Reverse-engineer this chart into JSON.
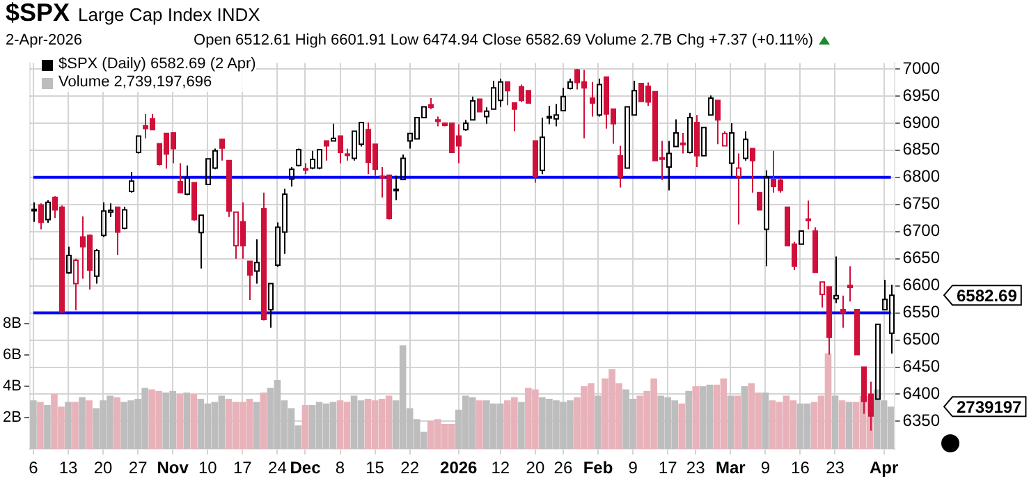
{
  "chart_data": {
    "type": "candlestick",
    "title": "$SPX",
    "subtitle": "Large Cap Index  INDX",
    "annotations": [
      "2-Apr-2026",
      "Open 6512.61  High 6601.91  Low 6474.94  Close 6582.69  Volume 2.7B  Chg +7.37 (+0.11%)",
      "6582.69",
      "2739197"
    ],
    "categories": [
      "6",
      null,
      null,
      null,
      null,
      "13",
      null,
      null,
      null,
      null,
      "20",
      null,
      null,
      null,
      null,
      "27",
      null,
      null,
      null,
      null,
      "Nov",
      null,
      null,
      null,
      null,
      "10",
      null,
      null,
      null,
      null,
      "17",
      null,
      null,
      null,
      null,
      "24",
      null,
      null,
      null,
      "Dec",
      null,
      null,
      null,
      null,
      "8",
      null,
      null,
      null,
      null,
      "15",
      null,
      null,
      null,
      null,
      "22",
      null,
      null,
      null,
      null,
      null,
      null,
      "2026",
      null,
      null,
      null,
      null,
      null,
      "12",
      null,
      null,
      null,
      null,
      "20",
      null,
      null,
      null,
      "26",
      null,
      null,
      null,
      null,
      "Feb",
      null,
      null,
      null,
      null,
      "9",
      null,
      null,
      null,
      null,
      "17",
      null,
      null,
      null,
      "23",
      null,
      null,
      null,
      null,
      "Mar",
      null,
      null,
      null,
      null,
      "9",
      null,
      null,
      null,
      null,
      "16",
      null,
      null,
      null,
      null,
      "23",
      null,
      null,
      null,
      null,
      null,
      null,
      "Apr",
      null
    ],
    "series": [
      {
        "name": "$SPX (Daily) 6582.69 (2 Apr)",
        "type": "candlestick",
        "color": "#000000",
        "ohlc": [
          [
            6741,
            6754,
            6718,
            6740
          ],
          [
            6749,
            6752,
            6704,
            6717
          ],
          [
            6722,
            6758,
            6716,
            6754
          ],
          [
            6763,
            6765,
            6725,
            6740
          ],
          [
            6745,
            6748,
            6550,
            6552
          ],
          [
            6624,
            6672,
            6622,
            6656
          ],
          [
            6604,
            6650,
            6555,
            6647
          ],
          [
            6690,
            6728,
            6613,
            6672
          ],
          [
            6693,
            6695,
            6593,
            6629
          ],
          [
            6618,
            6668,
            6604,
            6665
          ],
          [
            6693,
            6754,
            6690,
            6738
          ],
          [
            6736,
            6752,
            6727,
            6739
          ],
          [
            6745,
            6746,
            6657,
            6699
          ],
          [
            6706,
            6746,
            6704,
            6740
          ],
          [
            6774,
            6810,
            6772,
            6793
          ],
          [
            6846,
            6876,
            6844,
            6876
          ],
          [
            6895,
            6917,
            6872,
            6890
          ],
          [
            6908,
            6917,
            6888,
            6888
          ],
          [
            6862,
            6862,
            6822,
            6824
          ],
          [
            6881,
            6881,
            6816,
            6843
          ],
          [
            6882,
            6882,
            6826,
            6853
          ],
          [
            6792,
            6826,
            6772,
            6772
          ],
          [
            6769,
            6822,
            6767,
            6799
          ],
          [
            6790,
            6790,
            6720,
            6722
          ],
          [
            6698,
            6730,
            6632,
            6730
          ],
          [
            6787,
            6834,
            6786,
            6834
          ],
          [
            6817,
            6853,
            6815,
            6849
          ],
          [
            6870,
            6870,
            6831,
            6854
          ],
          [
            6831,
            6831,
            6727,
            6738
          ],
          [
            6674,
            6736,
            6650,
            6736
          ],
          [
            6718,
            6754,
            6650,
            6674
          ],
          [
            6645,
            6645,
            6574,
            6620
          ],
          [
            6627,
            6686,
            6604,
            6643
          ],
          [
            6742,
            6772,
            6536,
            6538
          ],
          [
            6556,
            6604,
            6523,
            6604
          ],
          [
            6638,
            6717,
            6635,
            6708
          ],
          [
            6699,
            6779,
            6659,
            6769
          ],
          [
            6797,
            6819,
            6783,
            6815
          ],
          [
            6822,
            6853,
            6820,
            6851
          ],
          [
            6816,
            6826,
            6806,
            6815
          ],
          [
            6817,
            6849,
            6815,
            6833
          ],
          [
            6817,
            6851,
            6815,
            6851
          ],
          [
            6867,
            6867,
            6831,
            6858
          ],
          [
            6867,
            6899,
            6867,
            6872
          ],
          [
            6876,
            6876,
            6826,
            6846
          ],
          [
            6843,
            6853,
            6831,
            6842
          ],
          [
            6835,
            6885,
            6831,
            6885
          ],
          [
            6861,
            6901,
            6857,
            6901
          ],
          [
            6888,
            6901,
            6806,
            6828
          ],
          [
            6861,
            6861,
            6803,
            6815
          ],
          [
            6802,
            6819,
            6763,
            6801
          ],
          [
            6804,
            6804,
            6722,
            6724
          ],
          [
            6777,
            6803,
            6758,
            6778
          ],
          [
            6796,
            6842,
            6796,
            6835
          ],
          [
            6867,
            6881,
            6853,
            6881
          ],
          [
            6871,
            6910,
            6871,
            6910
          ],
          [
            6910,
            6930,
            6910,
            6930
          ],
          [
            6934,
            6946,
            6926,
            6929
          ],
          [
            6906,
            6912,
            6894,
            6905
          ],
          [
            6900,
            6900,
            6894,
            6896
          ],
          [
            6900,
            6900,
            6846,
            6846
          ],
          [
            6876,
            6898,
            6826,
            6858
          ],
          [
            6888,
            6906,
            6886,
            6900
          ],
          [
            6906,
            6949,
            6906,
            6941
          ],
          [
            6944,
            6944,
            6921,
            6921
          ],
          [
            6912,
            6929,
            6899,
            6922
          ],
          [
            6926,
            6978,
            6926,
            6965
          ],
          [
            6942,
            6982,
            6930,
            6976
          ],
          [
            6976,
            6976,
            6933,
            6960
          ],
          [
            6937,
            6937,
            6885,
            6926
          ],
          [
            6967,
            6971,
            6939,
            6942
          ],
          [
            6960,
            6960,
            6937,
            6937
          ],
          [
            6867,
            6867,
            6790,
            6802
          ],
          [
            6813,
            6910,
            6806,
            6874
          ],
          [
            6911,
            6932,
            6898,
            6912
          ],
          [
            6908,
            6935,
            6894,
            6915
          ],
          [
            6923,
            6965,
            6922,
            6949
          ],
          [
            6964,
            6982,
            6962,
            6976
          ],
          [
            6998,
            7000,
            6962,
            6975
          ],
          [
            6976,
            6998,
            6872,
            6965
          ],
          [
            6946,
            6976,
            6912,
            6937
          ],
          [
            6915,
            6982,
            6912,
            6971
          ],
          [
            6985,
            6985,
            6890,
            6917
          ],
          [
            6926,
            6926,
            6862,
            6899
          ],
          [
            6840,
            6858,
            6781,
            6802
          ],
          [
            6817,
            6930,
            6817,
            6930
          ],
          [
            6915,
            6978,
            6915,
            6960
          ],
          [
            6973,
            6973,
            6940,
            6940
          ],
          [
            6968,
            6975,
            6932,
            6939
          ],
          [
            6958,
            6958,
            6831,
            6831
          ],
          [
            6836,
            6867,
            6795,
            6835
          ],
          [
            6819,
            6867,
            6776,
            6844
          ],
          [
            6857,
            6907,
            6857,
            6882
          ],
          [
            6863,
            6882,
            6844,
            6862
          ],
          [
            6846,
            6919,
            6844,
            6910
          ],
          [
            6901,
            6915,
            6819,
            6840
          ],
          [
            6840,
            6892,
            6840,
            6892
          ],
          [
            6915,
            6951,
            6915,
            6946
          ],
          [
            6942,
            6942,
            6861,
            6906
          ],
          [
            6858,
            6885,
            6858,
            6881
          ],
          [
            6826,
            6900,
            6801,
            6882
          ],
          [
            6801,
            6844,
            6713,
            6817
          ],
          [
            6835,
            6885,
            6831,
            6870
          ],
          [
            6853,
            6853,
            6772,
            6831
          ],
          [
            6772,
            6772,
            6740,
            6740
          ],
          [
            6704,
            6813,
            6636,
            6801
          ],
          [
            6796,
            6849,
            6772,
            6783
          ],
          [
            6795,
            6799,
            6772,
            6776
          ],
          [
            6745,
            6745,
            6674,
            6674
          ],
          [
            6677,
            6681,
            6629,
            6636
          ],
          [
            6677,
            6701,
            6677,
            6701
          ],
          [
            6723,
            6757,
            6704,
            6722
          ],
          [
            6701,
            6708,
            6625,
            6625
          ],
          [
            6584,
            6607,
            6560,
            6607
          ],
          [
            6598,
            6598,
            6473,
            6505
          ],
          [
            6576,
            6654,
            6568,
            6582
          ],
          [
            6556,
            6582,
            6523,
            6550
          ],
          [
            6601,
            6636,
            6571,
            6597
          ],
          [
            6556,
            6556,
            6473,
            6473
          ],
          [
            6450,
            6450,
            6364,
            6387
          ],
          [
            6400,
            6423,
            6333,
            6360
          ],
          [
            6391,
            6529,
            6391,
            6529
          ],
          [
            6556,
            6611,
            6556,
            6575
          ],
          [
            6512.61,
            6601.91,
            6474.94,
            6582.69
          ]
        ],
        "colors": [
          "#000000",
          "#d0103a",
          "#000000",
          "#d0103a",
          "#d0103a",
          "#000000",
          "#d0103a",
          "#d0103a",
          "#d0103a",
          "#000000",
          "#000000",
          "#000000",
          "#d0103a",
          "#000000",
          "#000000",
          "#000000",
          "#d0103a",
          "#d0103a",
          "#d0103a",
          "#d0103a",
          "#d0103a",
          "#d0103a",
          "#000000",
          "#d0103a",
          "#000000",
          "#000000",
          "#000000",
          "#d0103a",
          "#d0103a",
          "#d0103a",
          "#d0103a",
          "#d0103a",
          "#000000",
          "#d0103a",
          "#000000",
          "#000000",
          "#000000",
          "#000000",
          "#000000",
          "#d0103a",
          "#000000",
          "#000000",
          "#d0103a",
          "#000000",
          "#d0103a",
          "#d0103a",
          "#000000",
          "#000000",
          "#d0103a",
          "#d0103a",
          "#d0103a",
          "#d0103a",
          "#000000",
          "#000000",
          "#000000",
          "#000000",
          "#000000",
          "#d0103a",
          "#d0103a",
          "#d0103a",
          "#d0103a",
          "#d0103a",
          "#000000",
          "#000000",
          "#d0103a",
          "#000000",
          "#000000",
          "#000000",
          "#d0103a",
          "#d0103a",
          "#d0103a",
          "#d0103a",
          "#d0103a",
          "#000000",
          "#000000",
          "#000000",
          "#000000",
          "#000000",
          "#d0103a",
          "#d0103a",
          "#d0103a",
          "#000000",
          "#d0103a",
          "#d0103a",
          "#d0103a",
          "#000000",
          "#000000",
          "#d0103a",
          "#d0103a",
          "#d0103a",
          "#d0103a",
          "#000000",
          "#000000",
          "#d0103a",
          "#000000",
          "#d0103a",
          "#000000",
          "#000000",
          "#d0103a",
          "#d0103a",
          "#000000",
          "#d0103a",
          "#000000",
          "#d0103a",
          "#d0103a",
          "#000000",
          "#d0103a",
          "#d0103a",
          "#d0103a",
          "#d0103a",
          "#000000",
          "#d0103a",
          "#d0103a",
          "#d0103a",
          "#d0103a",
          "#000000",
          "#d0103a",
          "#d0103a",
          "#d0103a",
          "#d0103a",
          "#d0103a",
          "#000000",
          "#000000",
          "#000000"
        ]
      },
      {
        "name": "Volume 2,739,197,696",
        "type": "bar",
        "axis": "y2",
        "color": "#bdbdbd",
        "values": [
          3.1,
          3.0,
          2.8,
          3.5,
          2.7,
          3.0,
          3.0,
          3.3,
          3.1,
          2.6,
          3.1,
          3.4,
          3.3,
          3.0,
          3.1,
          3.2,
          3.9,
          3.8,
          3.7,
          3.6,
          3.7,
          3.5,
          3.6,
          3.5,
          3.2,
          2.9,
          3.0,
          3.4,
          3.2,
          3.0,
          3.0,
          3.2,
          3.0,
          3.6,
          3.9,
          4.4,
          3.1,
          2.6,
          1.5,
          2.8,
          2.8,
          3.0,
          2.9,
          3.0,
          3.1,
          3.0,
          3.4,
          3.1,
          3.2,
          3.1,
          3.2,
          3.4,
          3.1,
          6.6,
          2.6,
          1.9,
          1.1,
          1.8,
          1.9,
          1.6,
          1.6,
          2.5,
          3.4,
          3.3,
          3.1,
          3.1,
          2.9,
          2.9,
          3.1,
          3.3,
          3.0,
          3.9,
          3.8,
          3.3,
          3.2,
          3.1,
          3.0,
          3.1,
          3.3,
          4.0,
          4.2,
          3.4,
          4.5,
          5.1,
          4.2,
          3.8,
          3.2,
          3.4,
          3.7,
          4.5,
          3.4,
          3.3,
          3.1,
          2.9,
          3.7,
          4.0,
          4.0,
          4.1,
          4.1,
          4.5,
          3.4,
          3.4,
          4.0,
          4.2,
          3.6,
          3.6,
          3.1,
          3.0,
          3.4,
          3.1,
          2.9,
          2.9,
          3.0,
          3.4,
          6.1,
          3.4,
          3.1,
          3.0,
          3.0,
          3.4,
          3.4,
          3.8,
          3.1,
          2.7
        ],
        "colors": [
          "#bdbdbd",
          "#e8b2ba",
          "#bdbdbd",
          "#e8b2ba",
          "#e8b2ba",
          "#bdbdbd",
          "#e8b2ba",
          "#bdbdbd",
          "#e8b2ba",
          "#bdbdbd",
          "#bdbdbd",
          "#bdbdbd",
          "#e8b2ba",
          "#bdbdbd",
          "#bdbdbd",
          "#bdbdbd",
          "#bdbdbd",
          "#e8b2ba",
          "#e8b2ba",
          "#bdbdbd",
          "#bdbdbd",
          "#e8b2ba",
          "#bdbdbd",
          "#e8b2ba",
          "#bdbdbd",
          "#bdbdbd",
          "#bdbdbd",
          "#bdbdbd",
          "#e8b2ba",
          "#e8b2ba",
          "#e8b2ba",
          "#e8b2ba",
          "#bdbdbd",
          "#e8b2ba",
          "#bdbdbd",
          "#bdbdbd",
          "#bdbdbd",
          "#bdbdbd",
          "#bdbdbd",
          "#e8b2ba",
          "#bdbdbd",
          "#bdbdbd",
          "#bdbdbd",
          "#bdbdbd",
          "#e8b2ba",
          "#e8b2ba",
          "#bdbdbd",
          "#bdbdbd",
          "#e8b2ba",
          "#e8b2ba",
          "#e8b2ba",
          "#e8b2ba",
          "#bdbdbd",
          "#bdbdbd",
          "#bdbdbd",
          "#bdbdbd",
          "#bdbdbd",
          "#e8b2ba",
          "#e8b2ba",
          "#e8b2ba",
          "#e8b2ba",
          "#bdbdbd",
          "#bdbdbd",
          "#bdbdbd",
          "#e8b2ba",
          "#bdbdbd",
          "#bdbdbd",
          "#bdbdbd",
          "#e8b2ba",
          "#e8b2ba",
          "#bdbdbd",
          "#e8b2ba",
          "#e8b2ba",
          "#bdbdbd",
          "#bdbdbd",
          "#bdbdbd",
          "#bdbdbd",
          "#bdbdbd",
          "#e8b2ba",
          "#e8b2ba",
          "#e8b2ba",
          "#bdbdbd",
          "#e8b2ba",
          "#e8b2ba",
          "#e8b2ba",
          "#bdbdbd",
          "#bdbdbd",
          "#e8b2ba",
          "#e8b2ba",
          "#e8b2ba",
          "#bdbdbd",
          "#bdbdbd",
          "#bdbdbd",
          "#e8b2ba",
          "#bdbdbd",
          "#e8b2ba",
          "#bdbdbd",
          "#bdbdbd",
          "#e8b2ba",
          "#e8b2ba",
          "#bdbdbd",
          "#e8b2ba",
          "#bdbdbd",
          "#e8b2ba",
          "#e8b2ba",
          "#bdbdbd",
          "#e8b2ba",
          "#e8b2ba",
          "#e8b2ba",
          "#e8b2ba",
          "#bdbdbd",
          "#bdbdbd",
          "#e8b2ba",
          "#e8b2ba",
          "#e8b2ba",
          "#bdbdbd",
          "#e8b2ba",
          "#bdbdbd",
          "#e8b2ba",
          "#e8b2ba",
          "#e8b2ba",
          "#bdbdbd",
          "#bdbdbd",
          "#bdbdbd"
        ]
      },
      {
        "type": "line",
        "color": "#0000ff",
        "values": [
          6800,
          6800,
          6800,
          6800,
          6800,
          6800,
          6800,
          6800,
          6800,
          6800,
          6800,
          6800,
          6800,
          6800,
          6800,
          6800,
          6800,
          6800,
          6800,
          6800,
          6800,
          6800,
          6800,
          6800,
          6800,
          6800,
          6800,
          6800,
          6800,
          6800,
          6800,
          6800,
          6800,
          6800,
          6800,
          6800,
          6800,
          6800,
          6800,
          6800,
          6800,
          6800,
          6800,
          6800,
          6800,
          6800,
          6800,
          6800,
          6800,
          6800,
          6800,
          6800,
          6800,
          6800,
          6800,
          6800,
          6800,
          6800,
          6800,
          6800,
          6800,
          6800,
          6800,
          6800,
          6800,
          6800,
          6800,
          6800,
          6800,
          6800,
          6800,
          6800,
          6800,
          6800,
          6800,
          6800,
          6800,
          6800,
          6800,
          6800,
          6800,
          6800,
          6800,
          6800,
          6800,
          6800,
          6800,
          6800,
          6800,
          6800,
          6800,
          6800,
          6800,
          6800,
          6800,
          6800,
          6800,
          6800,
          6800,
          6800,
          6800,
          6800,
          6800,
          6800,
          6800,
          6800,
          6800,
          6800,
          6800,
          6800,
          6800,
          6800,
          6800,
          6800,
          6800,
          6800,
          6800,
          6800,
          6800,
          6800,
          6800,
          6800,
          6800,
          6800
        ]
      },
      {
        "type": "line",
        "color": "#0000ff",
        "values": [
          6550,
          6550,
          6550,
          6550,
          6550,
          6550,
          6550,
          6550,
          6550,
          6550,
          6550,
          6550,
          6550,
          6550,
          6550,
          6550,
          6550,
          6550,
          6550,
          6550,
          6550,
          6550,
          6550,
          6550,
          6550,
          6550,
          6550,
          6550,
          6550,
          6550,
          6550,
          6550,
          6550,
          6550,
          6550,
          6550,
          6550,
          6550,
          6550,
          6550,
          6550,
          6550,
          6550,
          6550,
          6550,
          6550,
          6550,
          6550,
          6550,
          6550,
          6550,
          6550,
          6550,
          6550,
          6550,
          6550,
          6550,
          6550,
          6550,
          6550,
          6550,
          6550,
          6550,
          6550,
          6550,
          6550,
          6550,
          6550,
          6550,
          6550,
          6550,
          6550,
          6550,
          6550,
          6550,
          6550,
          6550,
          6550,
          6550,
          6550,
          6550,
          6550,
          6550,
          6550,
          6550,
          6550,
          6550,
          6550,
          6550,
          6550,
          6550,
          6550,
          6550,
          6550,
          6550,
          6550,
          6550,
          6550,
          6550,
          6550,
          6550,
          6550,
          6550,
          6550,
          6550,
          6550,
          6550,
          6550,
          6550,
          6550,
          6550,
          6550,
          6550,
          6550,
          6550,
          6550,
          6550,
          6550,
          6550,
          6550,
          6550,
          6550,
          6550,
          6550
        ]
      }
    ],
    "ylim": [
      6299,
      7011
    ],
    "yticks": [
      6350,
      6400,
      6450,
      6500,
      6550,
      6600,
      6650,
      6700,
      6750,
      6800,
      6850,
      6900,
      6950,
      7000
    ],
    "y2lim": [
      0,
      24.6
    ],
    "y2ticks": [
      {
        "value": 2,
        "label": "2B"
      },
      {
        "value": 4,
        "label": "4B"
      },
      {
        "value": 6,
        "label": "6B"
      },
      {
        "value": 8,
        "label": "8B"
      }
    ],
    "grid": true,
    "legend": "top left"
  }
}
